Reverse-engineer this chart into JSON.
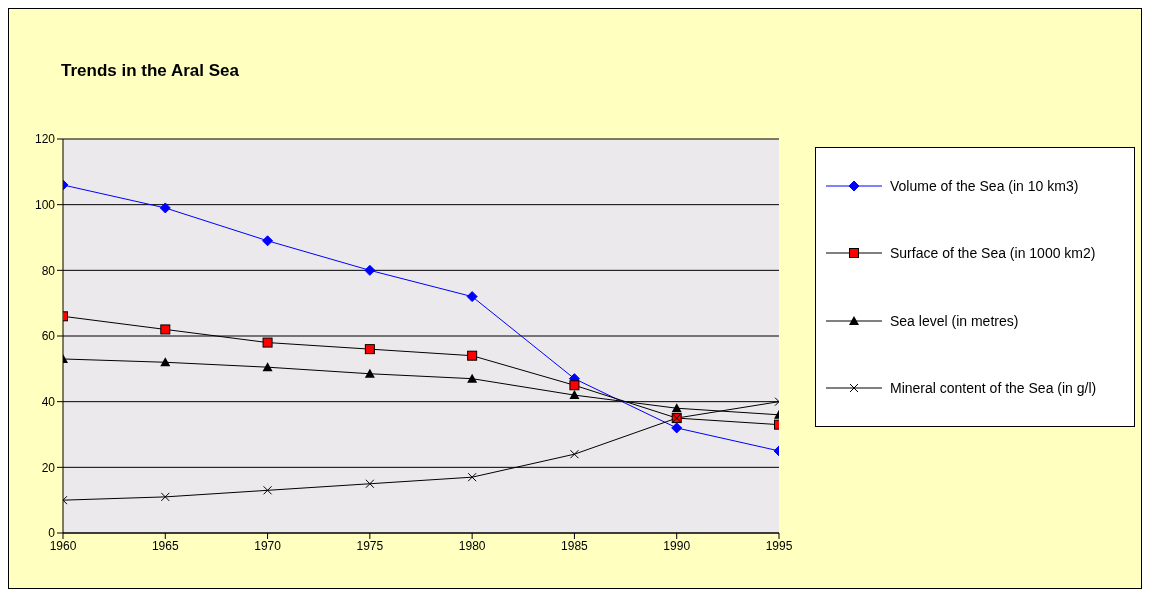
{
  "chart_data": {
    "type": "line",
    "title": "Trends in the Aral Sea",
    "x": [
      1960,
      1965,
      1970,
      1975,
      1980,
      1985,
      1990,
      1995
    ],
    "xlim": [
      1960,
      1995
    ],
    "xticks": [
      1960,
      1965,
      1970,
      1975,
      1980,
      1985,
      1990,
      1995
    ],
    "ylim": [
      0,
      120
    ],
    "yticks": [
      0,
      20,
      40,
      60,
      80,
      100,
      120
    ],
    "grid": "y",
    "legend": "right",
    "series": [
      {
        "name": "Volume of the Sea (in 10 km3)",
        "color": "#0000ff",
        "marker": "diamond",
        "values": [
          106,
          99,
          89,
          80,
          72,
          47,
          32,
          25
        ]
      },
      {
        "name": "Surface of the Sea (in 1000 km2)",
        "color": "#000000",
        "marker": "square",
        "values": [
          66,
          62,
          58,
          56,
          54,
          45,
          35,
          33
        ]
      },
      {
        "name": "Sea level (in metres)",
        "color": "#000000",
        "marker": "triangle",
        "values": [
          53,
          52,
          50.5,
          48.5,
          47,
          42,
          38,
          36
        ]
      },
      {
        "name": "Mineral content of the Sea (in g/l)",
        "color": "#000000",
        "marker": "cross",
        "values": [
          10,
          11,
          13,
          15,
          17,
          24,
          35,
          40
        ]
      }
    ]
  }
}
